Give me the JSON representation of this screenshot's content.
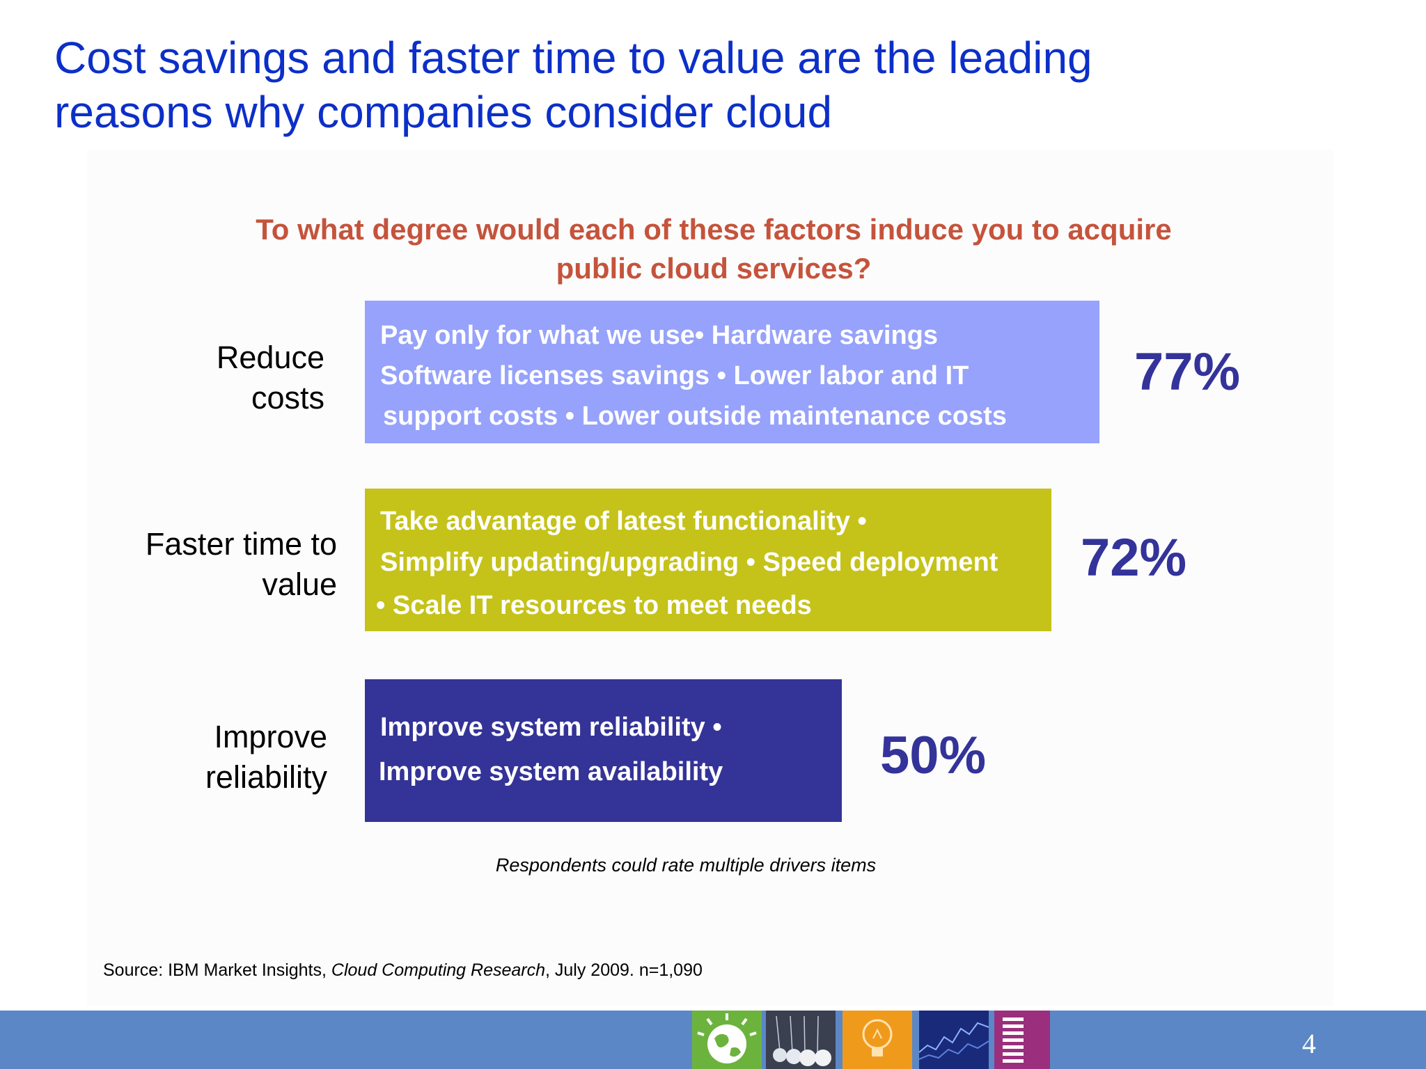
{
  "title_line1": "Cost savings and faster time to value are the leading",
  "title_line2": "reasons why companies consider cloud",
  "question_line1": "To what degree would each of these factors induce you to acquire",
  "question_line2": "public cloud services?",
  "chart_data": {
    "type": "bar",
    "orientation": "horizontal",
    "categories": [
      "Reduce costs",
      "Faster time to value",
      "Improve reliability"
    ],
    "values": [
      77,
      72,
      50
    ],
    "value_labels": [
      "77%",
      "72%",
      "50%"
    ],
    "colors": [
      "#96a2fb",
      "#c5c21a",
      "#343398"
    ],
    "grid": false,
    "rows": [
      {
        "label_line1": "Reduce",
        "label_line2": "costs",
        "text_lines": [
          "Pay only for what we use• Hardware savings",
          "Software licenses savings • Lower labor and IT",
          "support costs  • Lower outside maintenance costs"
        ]
      },
      {
        "label_line1": "Faster time to",
        "label_line2": "value",
        "text_lines": [
          "Take advantage of latest functionality •",
          "Simplify updating/upgrading  • Speed deployment",
          "• Scale IT resources to meet needs"
        ]
      },
      {
        "label_line1": "Improve",
        "label_line2": "reliability",
        "text_lines": [
          "Improve system reliability •",
          "Improve system availability"
        ]
      }
    ]
  },
  "note": "Respondents could rate multiple drivers items",
  "source_prefix": "Source: IBM Market Insights, ",
  "source_italic": "Cloud Computing Research",
  "source_suffix": ", July 2009. n=1,090",
  "page_number": "4",
  "footer_tiles": [
    "smarter-planet-globe-icon",
    "newton-cradle-icon",
    "lightbulb-icon",
    "data-chart-icon",
    "ibm-logo"
  ]
}
